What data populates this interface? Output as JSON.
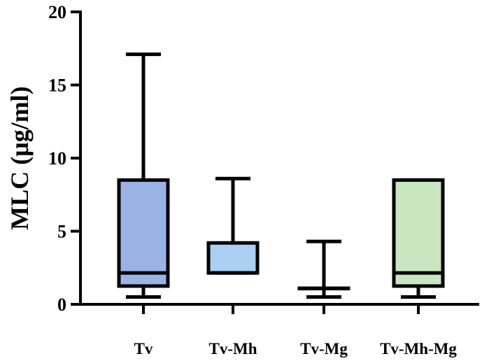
{
  "chart_data": {
    "type": "box",
    "title": "",
    "xlabel": "",
    "ylabel": "MLC (μg/ml)",
    "ylim": [
      0,
      20
    ],
    "yticks": [
      0,
      5,
      10,
      15,
      20
    ],
    "ytick_labels": [
      "0",
      "5",
      "10",
      "15",
      "20"
    ],
    "grid": false,
    "categories": [
      "Tv",
      "Tv-Mh",
      "Tv-Mg",
      "Tv-Mh-Mg"
    ],
    "series": [
      {
        "category": "Tv",
        "min": 0.5,
        "q1": 1.25,
        "median": 2.15,
        "q3": 8.5,
        "max": 17.1,
        "color": "#99b3e6"
      },
      {
        "category": "Tv-Mh",
        "min": 2.15,
        "q1": 2.15,
        "median": 2.15,
        "q3": 4.2,
        "max": 8.6,
        "color": "#a9d0f2"
      },
      {
        "category": "Tv-Mg",
        "min": 0.5,
        "q1": 1.1,
        "median": 1.1,
        "q3": 1.1,
        "max": 4.3,
        "color": "#ffffff"
      },
      {
        "category": "Tv-Mh-Mg",
        "min": 0.5,
        "q1": 1.25,
        "median": 2.15,
        "q3": 8.5,
        "max": 8.5,
        "color": "#c8e6c0"
      }
    ]
  }
}
